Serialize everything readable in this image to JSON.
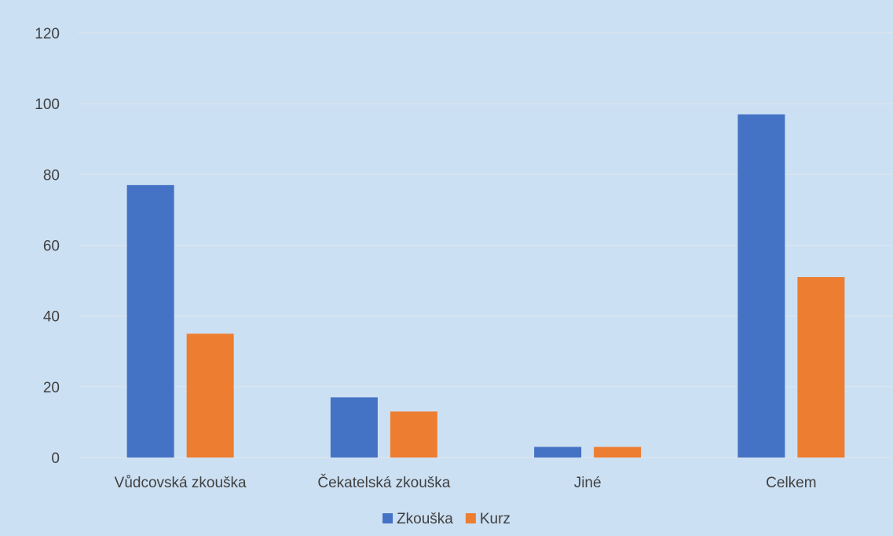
{
  "chart_data": {
    "type": "bar",
    "title": "",
    "xlabel": "",
    "ylabel": "",
    "categories": [
      "Vůdcovská zkouška",
      "Čekatelská zkouška",
      "Jiné",
      "Celkem"
    ],
    "series": [
      {
        "name": "Zkouška",
        "values": [
          77,
          17,
          3,
          97
        ],
        "color": "#4472c4"
      },
      {
        "name": "Kurz",
        "values": [
          35,
          13,
          3,
          51
        ],
        "color": "#ed7d31"
      }
    ],
    "ylim": [
      0,
      120
    ],
    "yticks": [
      0,
      20,
      40,
      60,
      80,
      100,
      120
    ],
    "grid": true,
    "legend": "bottom"
  },
  "background_color": "#cce0f3"
}
